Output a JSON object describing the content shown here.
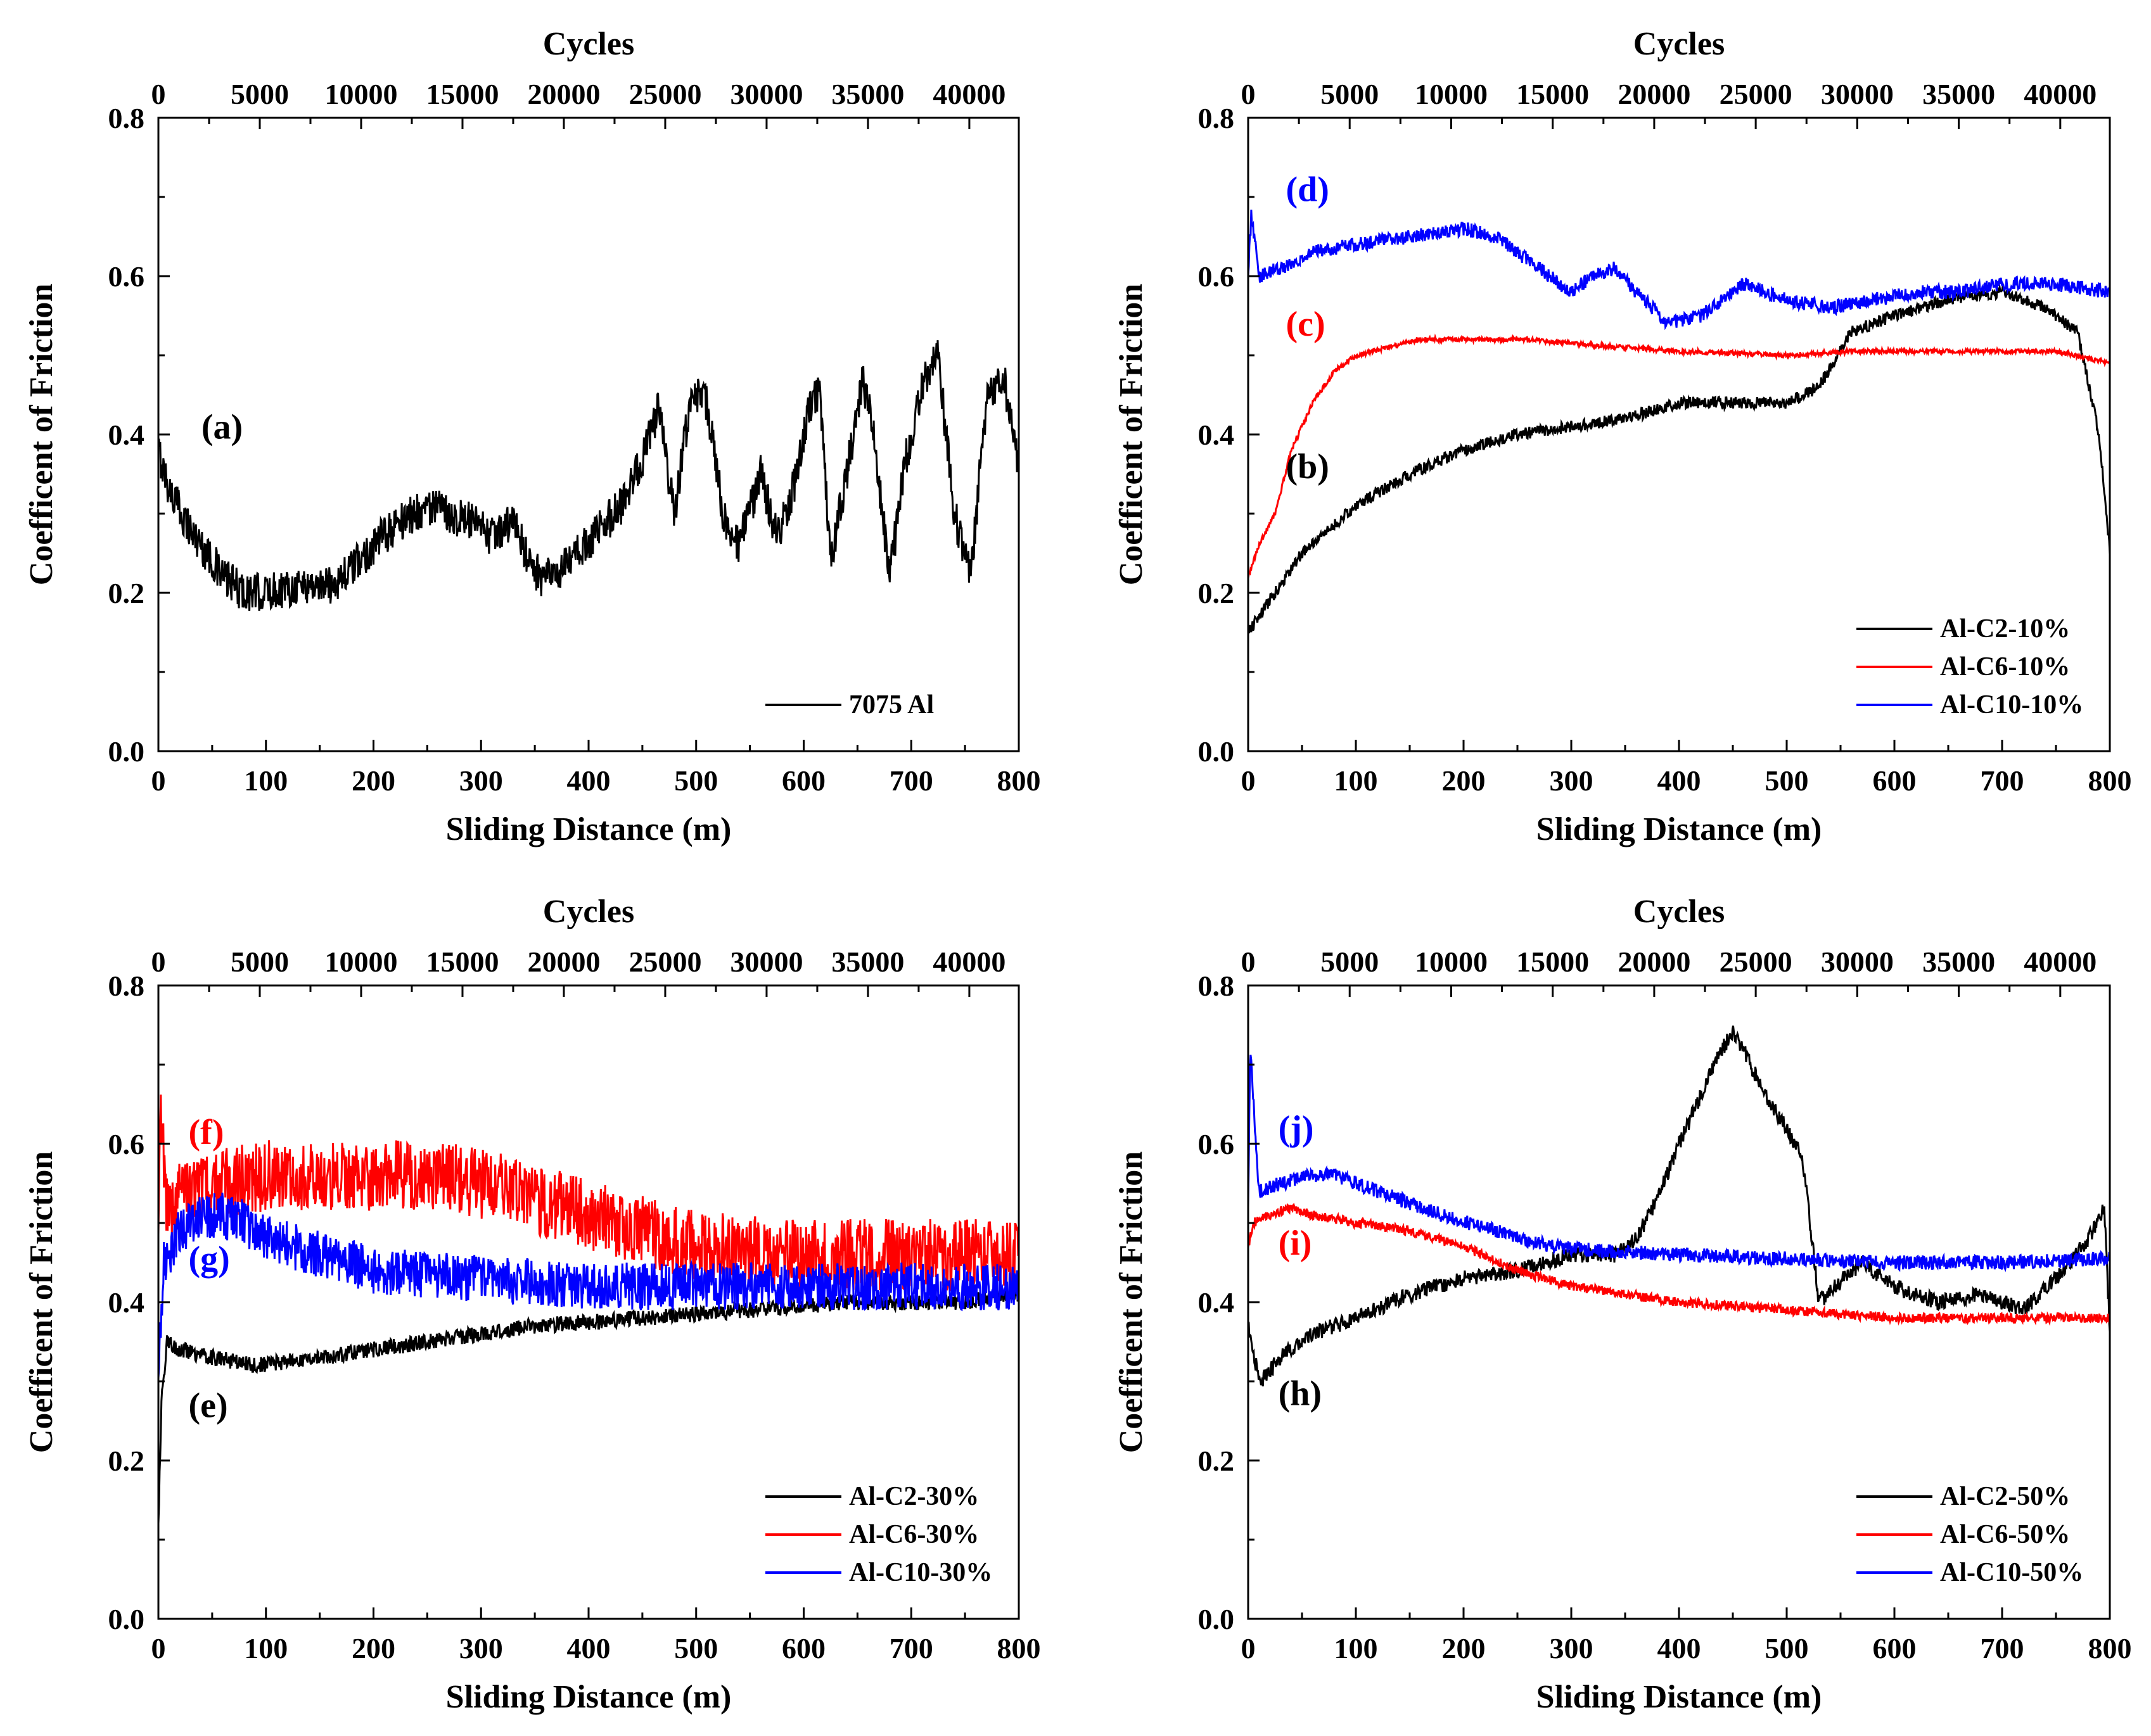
{
  "figure": {
    "panel_count": 4
  },
  "chart_data": [
    {
      "id": "a",
      "type": "line",
      "xlabel": "Sliding Distance (m)",
      "ylabel": "Coefficent of Friction",
      "top_xlabel": "Cycles",
      "xlim": [
        0,
        800
      ],
      "ylim": [
        0,
        0.8
      ],
      "top_xlim": [
        0,
        42440
      ],
      "x_ticks": [
        0,
        100,
        200,
        300,
        400,
        500,
        600,
        700,
        800
      ],
      "x_tick_labels": [
        "0",
        "100",
        "200",
        "300",
        "400",
        "500",
        "600",
        "700",
        "800"
      ],
      "y_ticks": [
        0,
        0.2,
        0.4,
        0.6,
        0.8
      ],
      "y_tick_labels": [
        "0.0",
        "0.2",
        "0.4",
        "0.6",
        "0.8"
      ],
      "top_ticks": [
        0,
        5000,
        10000,
        15000,
        20000,
        25000,
        30000,
        35000,
        40000
      ],
      "top_tick_labels": [
        "0",
        "5000",
        "10000",
        "15000",
        "20000",
        "25000",
        "30000",
        "35000",
        "40000"
      ],
      "legend_position": "bottom-right",
      "series": [
        {
          "name": "7075 Al",
          "color": "#000000",
          "noise": 0.05,
          "x": [
            0,
            10,
            30,
            60,
            80,
            100,
            130,
            160,
            180,
            200,
            225,
            250,
            270,
            290,
            310,
            330,
            345,
            355,
            370,
            390,
            410,
            430,
            450,
            465,
            480,
            495,
            510,
            525,
            540,
            560,
            575,
            590,
            605,
            615,
            625,
            640,
            655,
            665,
            680,
            695,
            710,
            725,
            740,
            755,
            770,
            785,
            800
          ],
          "y": [
            0.38,
            0.33,
            0.28,
            0.22,
            0.2,
            0.2,
            0.21,
            0.21,
            0.23,
            0.26,
            0.29,
            0.31,
            0.3,
            0.29,
            0.27,
            0.29,
            0.24,
            0.22,
            0.22,
            0.25,
            0.28,
            0.31,
            0.37,
            0.43,
            0.3,
            0.45,
            0.44,
            0.3,
            0.26,
            0.35,
            0.27,
            0.33,
            0.43,
            0.46,
            0.24,
            0.35,
            0.47,
            0.4,
            0.22,
            0.37,
            0.46,
            0.5,
            0.3,
            0.22,
            0.44,
            0.48,
            0.36
          ]
        }
      ],
      "annotations": [
        {
          "label": "(a)",
          "x": 40,
          "y": 0.395,
          "color": "#000000"
        }
      ]
    },
    {
      "id": "b",
      "type": "line",
      "xlabel": "Sliding Distance (m)",
      "ylabel": "Coefficent of Friction",
      "top_xlabel": "Cycles",
      "xlim": [
        0,
        800
      ],
      "ylim": [
        0,
        0.8
      ],
      "top_xlim": [
        0,
        42440
      ],
      "x_ticks": [
        0,
        100,
        200,
        300,
        400,
        500,
        600,
        700,
        800
      ],
      "x_tick_labels": [
        "0",
        "100",
        "200",
        "300",
        "400",
        "500",
        "600",
        "700",
        "800"
      ],
      "y_ticks": [
        0,
        0.2,
        0.4,
        0.6,
        0.8
      ],
      "y_tick_labels": [
        "0.0",
        "0.2",
        "0.4",
        "0.6",
        "0.8"
      ],
      "top_ticks": [
        0,
        5000,
        10000,
        15000,
        20000,
        25000,
        30000,
        35000,
        40000
      ],
      "top_tick_labels": [
        "0",
        "5000",
        "10000",
        "15000",
        "20000",
        "25000",
        "30000",
        "35000",
        "40000"
      ],
      "legend_position": "bottom-right",
      "series": [
        {
          "name": "Al-C2-10%",
          "color": "#000000",
          "noise": 0.015,
          "x": [
            0,
            20,
            50,
            100,
            150,
            200,
            250,
            300,
            350,
            400,
            450,
            500,
            530,
            560,
            600,
            650,
            700,
            740,
            770,
            790,
            800
          ],
          "y": [
            0.15,
            0.19,
            0.25,
            0.31,
            0.35,
            0.38,
            0.4,
            0.41,
            0.42,
            0.44,
            0.44,
            0.44,
            0.46,
            0.53,
            0.55,
            0.57,
            0.58,
            0.56,
            0.53,
            0.4,
            0.25
          ]
        },
        {
          "name": "Al-C6-10%",
          "color": "#ff0000",
          "noise": 0.006,
          "x": [
            0,
            10,
            25,
            40,
            60,
            80,
            100,
            130,
            160,
            200,
            260,
            300,
            400,
            500,
            560,
            600,
            700,
            750,
            800
          ],
          "y": [
            0.22,
            0.26,
            0.3,
            0.38,
            0.44,
            0.48,
            0.5,
            0.51,
            0.52,
            0.52,
            0.52,
            0.515,
            0.505,
            0.5,
            0.505,
            0.505,
            0.505,
            0.505,
            0.49
          ]
        },
        {
          "name": "Al-C10-10%",
          "color": "#0000ff",
          "noise": 0.018,
          "x": [
            0,
            3,
            10,
            30,
            60,
            100,
            150,
            200,
            230,
            260,
            300,
            320,
            340,
            360,
            390,
            420,
            460,
            500,
            540,
            580,
            620,
            660,
            700,
            750,
            800
          ],
          "y": [
            0.6,
            0.68,
            0.6,
            0.61,
            0.63,
            0.64,
            0.65,
            0.66,
            0.65,
            0.62,
            0.58,
            0.6,
            0.61,
            0.58,
            0.54,
            0.55,
            0.59,
            0.57,
            0.56,
            0.57,
            0.58,
            0.58,
            0.59,
            0.59,
            0.58
          ]
        }
      ],
      "annotations": [
        {
          "label": "(d)",
          "x": 35,
          "y": 0.695,
          "color": "#0000ff"
        },
        {
          "label": "(c)",
          "x": 35,
          "y": 0.525,
          "color": "#ff0000"
        },
        {
          "label": "(b)",
          "x": 35,
          "y": 0.345,
          "color": "#000000"
        }
      ]
    },
    {
      "id": "e",
      "type": "line",
      "xlabel": "Sliding Distance (m)",
      "ylabel": "Coefficent of Friction",
      "top_xlabel": "Cycles",
      "xlim": [
        0,
        800
      ],
      "ylim": [
        0,
        0.8
      ],
      "top_xlim": [
        0,
        42440
      ],
      "x_ticks": [
        0,
        100,
        200,
        300,
        400,
        500,
        600,
        700,
        800
      ],
      "x_tick_labels": [
        "0",
        "100",
        "200",
        "300",
        "400",
        "500",
        "600",
        "700",
        "800"
      ],
      "y_ticks": [
        0,
        0.2,
        0.4,
        0.6,
        0.8
      ],
      "y_tick_labels": [
        "0.0",
        "0.2",
        "0.4",
        "0.6",
        "0.8"
      ],
      "top_ticks": [
        0,
        5000,
        10000,
        15000,
        20000,
        25000,
        30000,
        35000,
        40000
      ],
      "top_tick_labels": [
        "0",
        "5000",
        "10000",
        "15000",
        "20000",
        "25000",
        "30000",
        "35000",
        "40000"
      ],
      "legend_position": "bottom-right",
      "series": [
        {
          "name": "Al-C2-30%",
          "color": "#000000",
          "noise": 0.02,
          "x": [
            0,
            3,
            8,
            20,
            50,
            90,
            150,
            250,
            350,
            450,
            550,
            650,
            750,
            800
          ],
          "y": [
            0.12,
            0.28,
            0.35,
            0.34,
            0.33,
            0.32,
            0.33,
            0.35,
            0.37,
            0.38,
            0.39,
            0.4,
            0.4,
            0.41
          ]
        },
        {
          "name": "Al-C6-30%",
          "color": "#ff0000",
          "noise": 0.09,
          "x": [
            0,
            2,
            8,
            30,
            60,
            100,
            150,
            200,
            250,
            300,
            350,
            400,
            450,
            500,
            600,
            700,
            800
          ],
          "y": [
            0.5,
            0.65,
            0.52,
            0.54,
            0.55,
            0.56,
            0.56,
            0.56,
            0.56,
            0.55,
            0.53,
            0.51,
            0.49,
            0.47,
            0.46,
            0.46,
            0.46
          ]
        },
        {
          "name": "Al-C10-30%",
          "color": "#0000ff",
          "noise": 0.06,
          "x": [
            0,
            5,
            20,
            40,
            60,
            80,
            100,
            150,
            200,
            300,
            400,
            500,
            600,
            700,
            800
          ],
          "y": [
            0.3,
            0.45,
            0.49,
            0.51,
            0.51,
            0.5,
            0.48,
            0.46,
            0.44,
            0.43,
            0.42,
            0.42,
            0.42,
            0.42,
            0.42
          ]
        }
      ],
      "annotations": [
        {
          "label": "(f)",
          "x": 28,
          "y": 0.6,
          "color": "#ff0000"
        },
        {
          "label": "(g)",
          "x": 28,
          "y": 0.44,
          "color": "#0000ff"
        },
        {
          "label": "(e)",
          "x": 28,
          "y": 0.255,
          "color": "#000000"
        }
      ]
    },
    {
      "id": "h",
      "type": "line",
      "xlabel": "Sliding Distance (m)",
      "ylabel": "Coefficent of Friction",
      "top_xlabel": "Cycles",
      "xlim": [
        0,
        800
      ],
      "ylim": [
        0,
        0.8
      ],
      "top_xlim": [
        0,
        42440
      ],
      "x_ticks": [
        0,
        100,
        200,
        300,
        400,
        500,
        600,
        700,
        800
      ],
      "x_tick_labels": [
        "0",
        "100",
        "200",
        "300",
        "400",
        "500",
        "600",
        "700",
        "800"
      ],
      "y_ticks": [
        0,
        0.2,
        0.4,
        0.6,
        0.8
      ],
      "y_tick_labels": [
        "0.0",
        "0.2",
        "0.4",
        "0.6",
        "0.8"
      ],
      "top_ticks": [
        0,
        5000,
        10000,
        15000,
        20000,
        25000,
        30000,
        35000,
        40000
      ],
      "top_tick_labels": [
        "0",
        "5000",
        "10000",
        "15000",
        "20000",
        "25000",
        "30000",
        "35000",
        "40000"
      ],
      "legend_position": "bottom-right",
      "series": [
        {
          "name": "Al-C2-50%",
          "color": "#000000",
          "noise": 0.02,
          "x": [
            0,
            5,
            12,
            30,
            60,
            100,
            150,
            200,
            250,
            300,
            340,
            360,
            380,
            400,
            420,
            440,
            450,
            460,
            480,
            500,
            515,
            530,
            545,
            570,
            600,
            640,
            680,
            720,
            750,
            780,
            795,
            800
          ],
          "y": [
            0.37,
            0.33,
            0.3,
            0.33,
            0.36,
            0.38,
            0.41,
            0.43,
            0.44,
            0.46,
            0.46,
            0.48,
            0.53,
            0.6,
            0.66,
            0.72,
            0.74,
            0.72,
            0.66,
            0.62,
            0.58,
            0.4,
            0.42,
            0.45,
            0.42,
            0.4,
            0.41,
            0.39,
            0.43,
            0.48,
            0.52,
            0.36
          ]
        },
        {
          "name": "Al-C6-50%",
          "color": "#ff0000",
          "noise": 0.012,
          "x": [
            0,
            5,
            20,
            40,
            60,
            100,
            150,
            200,
            250,
            300,
            350,
            400,
            500,
            600,
            700,
            800
          ],
          "y": [
            0.47,
            0.5,
            0.51,
            0.52,
            0.51,
            0.5,
            0.49,
            0.47,
            0.44,
            0.42,
            0.41,
            0.4,
            0.39,
            0.38,
            0.38,
            0.38
          ]
        },
        {
          "name": "Al-C10-50%",
          "color": "#0000ff",
          "noise": 0.018,
          "x": [
            0,
            2,
            10,
            30,
            60,
            80,
            100,
            140,
            180,
            230,
            280,
            330,
            400,
            500,
            600,
            700,
            800
          ],
          "y": [
            0.52,
            0.72,
            0.54,
            0.55,
            0.56,
            0.56,
            0.55,
            0.53,
            0.51,
            0.49,
            0.47,
            0.465,
            0.46,
            0.455,
            0.45,
            0.45,
            0.455
          ]
        }
      ],
      "annotations": [
        {
          "label": "(j)",
          "x": 28,
          "y": 0.605,
          "color": "#0000ff"
        },
        {
          "label": "(i)",
          "x": 28,
          "y": 0.46,
          "color": "#ff0000"
        },
        {
          "label": "(h)",
          "x": 28,
          "y": 0.27,
          "color": "#000000"
        }
      ]
    }
  ]
}
